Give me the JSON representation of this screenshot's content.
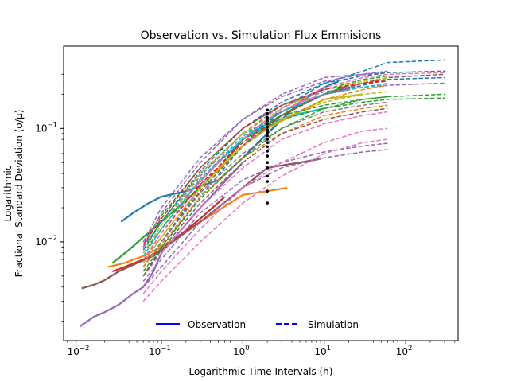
{
  "chart_data": {
    "type": "line",
    "title": "Observation vs. Simulation Flux Emmisions",
    "xlabel": "Logarithmic Time Intervals (h)",
    "ylabel_line1": "Logarithmic",
    "ylabel_line2": "Fractional Standard Deviation (σ/μ)",
    "xscale": "log",
    "yscale": "log",
    "xlim": [
      0.0063,
      440
    ],
    "ylim": [
      0.00135,
      0.53
    ],
    "x_ticks": [
      {
        "value": 0.01,
        "base": "10",
        "exp": "−2"
      },
      {
        "value": 0.1,
        "base": "10",
        "exp": "−1"
      },
      {
        "value": 1,
        "base": "10",
        "exp": "0"
      },
      {
        "value": 10,
        "base": "10",
        "exp": "1"
      },
      {
        "value": 100,
        "base": "10",
        "exp": "2"
      }
    ],
    "y_ticks": [
      {
        "value": 0.01,
        "base": "10",
        "exp": "−2"
      },
      {
        "value": 0.1,
        "base": "10",
        "exp": "−1"
      }
    ],
    "legend": {
      "placement": "lower center",
      "entries": [
        {
          "label": "Observation",
          "style": "solid",
          "color": "#0000ff"
        },
        {
          "label": "Simulation",
          "style": "dashed",
          "color": "#0000ff"
        }
      ]
    },
    "colors": [
      "#1f77b4",
      "#ff7f0e",
      "#2ca02c",
      "#d62728",
      "#9467bd",
      "#8c564b",
      "#e377c2",
      "#7f7f7f",
      "#bcbd22",
      "#17becf"
    ],
    "series": [
      {
        "style": "solid",
        "color": "#1f77b4",
        "x": [
          0.032,
          0.045,
          0.07,
          0.1,
          0.2,
          0.5,
          1.0,
          2.0,
          5.0,
          10,
          15
        ],
        "y": [
          0.015,
          0.018,
          0.022,
          0.025,
          0.028,
          0.035,
          0.055,
          0.09,
          0.17,
          0.23,
          0.26
        ]
      },
      {
        "style": "solid",
        "color": "#ff7f0e",
        "x": [
          0.022,
          0.035,
          0.06,
          0.1,
          0.3,
          0.7,
          1.0,
          2.0,
          3.5
        ],
        "y": [
          0.006,
          0.0065,
          0.0075,
          0.009,
          0.015,
          0.022,
          0.026,
          0.028,
          0.03
        ]
      },
      {
        "style": "solid",
        "color": "#2ca02c",
        "x": [
          0.025,
          0.04,
          0.06,
          0.1,
          0.3,
          0.6,
          1.0,
          2.0,
          5.0,
          10,
          20
        ],
        "y": [
          0.0065,
          0.0085,
          0.011,
          0.015,
          0.03,
          0.05,
          0.08,
          0.11,
          0.16,
          0.2,
          0.24
        ]
      },
      {
        "style": "solid",
        "color": "#d62728",
        "x": [
          0.025,
          0.035,
          0.06,
          0.1,
          0.3,
          0.6
        ],
        "y": [
          0.0055,
          0.006,
          0.007,
          0.0085,
          0.016,
          0.025
        ]
      },
      {
        "style": "solid",
        "color": "#9467bd",
        "x": [
          0.01,
          0.015,
          0.02,
          0.03,
          0.045,
          0.06,
          0.08,
          0.1,
          0.3,
          1.0
        ],
        "y": [
          0.0018,
          0.0022,
          0.0024,
          0.0028,
          0.0035,
          0.004,
          0.0055,
          0.008,
          0.02,
          0.05
        ]
      },
      {
        "style": "solid",
        "color": "#8c564b",
        "x": [
          0.0105,
          0.015,
          0.02,
          0.03,
          0.05,
          0.08,
          0.1,
          0.3,
          1.0,
          2.0,
          5.0,
          9.0
        ],
        "y": [
          0.0039,
          0.0042,
          0.0046,
          0.0055,
          0.0065,
          0.0075,
          0.0085,
          0.015,
          0.03,
          0.045,
          0.05,
          0.054
        ]
      },
      {
        "style": "solid",
        "color": "#e377c2",
        "x": [
          0.2,
          0.5,
          1.0,
          2.0,
          5.0,
          10,
          20
        ],
        "y": [
          0.025,
          0.05,
          0.08,
          0.12,
          0.17,
          0.2,
          0.22
        ]
      },
      {
        "style": "solid",
        "color": "#bcbd22",
        "x": [
          0.3,
          0.6,
          1.0,
          2.0,
          5.0,
          10,
          30
        ],
        "y": [
          0.03,
          0.05,
          0.07,
          0.1,
          0.14,
          0.18,
          0.2
        ]
      },
      {
        "style": "solid",
        "color": "#17becf",
        "x": [
          0.5,
          1.0,
          2.0,
          4.0,
          10
        ],
        "y": [
          0.05,
          0.08,
          0.11,
          0.13,
          0.15
        ]
      },
      {
        "style": "dashed",
        "color": "#1f77b4",
        "x": [
          0.06,
          0.1,
          0.3,
          1.0,
          3.0,
          10,
          30,
          60,
          300
        ],
        "y": [
          0.005,
          0.009,
          0.025,
          0.07,
          0.15,
          0.25,
          0.32,
          0.38,
          0.4
        ]
      },
      {
        "style": "dashed",
        "color": "#1f77b4",
        "x": [
          0.06,
          0.1,
          0.3,
          1.0,
          3.0,
          10,
          30,
          60,
          300
        ],
        "y": [
          0.006,
          0.01,
          0.03,
          0.08,
          0.14,
          0.2,
          0.24,
          0.27,
          0.28
        ]
      },
      {
        "style": "dashed",
        "color": "#ff7f0e",
        "x": [
          0.06,
          0.1,
          0.3,
          1.0,
          3.0,
          10,
          30,
          60
        ],
        "y": [
          0.007,
          0.011,
          0.03,
          0.07,
          0.12,
          0.18,
          0.22,
          0.24
        ]
      },
      {
        "style": "dashed",
        "color": "#2ca02c",
        "x": [
          0.06,
          0.1,
          0.3,
          1.0,
          3.0,
          10,
          30,
          60,
          300
        ],
        "y": [
          0.008,
          0.013,
          0.035,
          0.08,
          0.12,
          0.15,
          0.17,
          0.18,
          0.185
        ]
      },
      {
        "style": "dashed",
        "color": "#2ca02c",
        "x": [
          0.06,
          0.1,
          0.3,
          1.0,
          3.0,
          10,
          30,
          60,
          300
        ],
        "y": [
          0.009,
          0.015,
          0.04,
          0.09,
          0.13,
          0.16,
          0.18,
          0.19,
          0.2
        ]
      },
      {
        "style": "dashed",
        "color": "#2ca02c",
        "x": [
          0.06,
          0.1,
          0.3,
          1.0,
          3.0,
          10,
          30,
          60
        ],
        "y": [
          0.01,
          0.017,
          0.045,
          0.1,
          0.16,
          0.22,
          0.27,
          0.29
        ]
      },
      {
        "style": "dashed",
        "color": "#d62728",
        "x": [
          0.06,
          0.1,
          0.3,
          1.0,
          3.0,
          10,
          30,
          60
        ],
        "y": [
          0.007,
          0.012,
          0.032,
          0.075,
          0.13,
          0.2,
          0.25,
          0.27
        ]
      },
      {
        "style": "dashed",
        "color": "#9467bd",
        "x": [
          0.06,
          0.1,
          0.3,
          1.0,
          3.0,
          10,
          30,
          60
        ],
        "y": [
          0.009,
          0.018,
          0.05,
          0.12,
          0.19,
          0.26,
          0.3,
          0.32
        ]
      },
      {
        "style": "dashed",
        "color": "#9467bd",
        "x": [
          0.06,
          0.1,
          0.3,
          1.0,
          3.0,
          10,
          30,
          60,
          300
        ],
        "y": [
          0.008,
          0.014,
          0.038,
          0.09,
          0.16,
          0.21,
          0.23,
          0.24,
          0.25
        ]
      },
      {
        "style": "dashed",
        "color": "#9467bd",
        "x": [
          0.06,
          0.1,
          0.3,
          1.0,
          3.0,
          10,
          30,
          60
        ],
        "y": [
          0.004,
          0.006,
          0.015,
          0.03,
          0.045,
          0.055,
          0.062,
          0.065
        ]
      },
      {
        "style": "dashed",
        "color": "#9467bd",
        "x": [
          0.06,
          0.1,
          0.3,
          1.0,
          3.0,
          10,
          30,
          60
        ],
        "y": [
          0.0045,
          0.007,
          0.018,
          0.035,
          0.05,
          0.062,
          0.07,
          0.074
        ]
      },
      {
        "style": "dashed",
        "color": "#9467bd",
        "x": [
          0.06,
          0.1,
          0.3,
          1.0,
          3.0,
          10,
          30,
          60
        ],
        "y": [
          0.01,
          0.02,
          0.055,
          0.12,
          0.2,
          0.28,
          0.3,
          0.31
        ]
      },
      {
        "style": "dashed",
        "color": "#8c564b",
        "x": [
          0.06,
          0.1,
          0.3,
          1.0,
          3.0,
          10,
          30,
          60,
          300
        ],
        "y": [
          0.006,
          0.01,
          0.028,
          0.07,
          0.13,
          0.2,
          0.25,
          0.28,
          0.3
        ]
      },
      {
        "style": "dashed",
        "color": "#e377c2",
        "x": [
          0.06,
          0.1,
          0.3,
          1.0,
          3.0,
          10,
          30,
          60
        ],
        "y": [
          0.003,
          0.0045,
          0.01,
          0.022,
          0.038,
          0.06,
          0.075,
          0.08
        ]
      },
      {
        "style": "dashed",
        "color": "#e377c2",
        "x": [
          0.06,
          0.1,
          0.3,
          1.0,
          3.0,
          10,
          30,
          60
        ],
        "y": [
          0.0035,
          0.0055,
          0.013,
          0.03,
          0.05,
          0.075,
          0.095,
          0.1
        ]
      },
      {
        "style": "dashed",
        "color": "#e377c2",
        "x": [
          0.06,
          0.1,
          0.3,
          1.0,
          3.0,
          10,
          30,
          60
        ],
        "y": [
          0.005,
          0.008,
          0.02,
          0.045,
          0.08,
          0.11,
          0.13,
          0.14
        ]
      },
      {
        "style": "dashed",
        "color": "#e377c2",
        "x": [
          0.06,
          0.1,
          0.3,
          1.0,
          3.0,
          10,
          30,
          60,
          300
        ],
        "y": [
          0.007,
          0.012,
          0.035,
          0.08,
          0.15,
          0.23,
          0.28,
          0.3,
          0.31
        ]
      },
      {
        "style": "dashed",
        "color": "#7f7f7f",
        "x": [
          0.06,
          0.1,
          0.3,
          1.0,
          3.0,
          10,
          30,
          60
        ],
        "y": [
          0.006,
          0.01,
          0.027,
          0.06,
          0.1,
          0.14,
          0.16,
          0.17
        ]
      },
      {
        "style": "dashed",
        "color": "#bcbd22",
        "x": [
          0.06,
          0.1,
          0.3,
          1.0,
          3.0,
          10,
          30,
          60
        ],
        "y": [
          0.0065,
          0.011,
          0.03,
          0.07,
          0.12,
          0.17,
          0.2,
          0.21
        ]
      },
      {
        "style": "dashed",
        "color": "#bcbd22",
        "x": [
          0.06,
          0.1,
          0.3,
          1.0,
          3.0,
          10,
          30,
          60
        ],
        "y": [
          0.008,
          0.014,
          0.04,
          0.09,
          0.15,
          0.22,
          0.26,
          0.28
        ]
      },
      {
        "style": "dashed",
        "color": "#17becf",
        "x": [
          0.06,
          0.1,
          0.3,
          1.0,
          3.0,
          10,
          30,
          60
        ],
        "y": [
          0.0075,
          0.013,
          0.036,
          0.085,
          0.14,
          0.2,
          0.23,
          0.25
        ]
      },
      {
        "style": "dashed",
        "color": "#1f77b4",
        "x": [
          0.06,
          0.1,
          0.3,
          1.0,
          3.0,
          10,
          30,
          60,
          300
        ],
        "y": [
          0.0085,
          0.015,
          0.042,
          0.1,
          0.17,
          0.25,
          0.29,
          0.31,
          0.32
        ]
      },
      {
        "style": "dashed",
        "color": "#ff7f0e",
        "x": [
          0.06,
          0.1,
          0.3,
          1.0,
          3.0,
          10,
          30,
          60
        ],
        "y": [
          0.006,
          0.0095,
          0.025,
          0.055,
          0.09,
          0.13,
          0.15,
          0.16
        ]
      },
      {
        "style": "dashed",
        "color": "#2ca02c",
        "x": [
          0.06,
          0.1,
          0.3,
          1.0,
          3.0,
          10,
          30,
          60
        ],
        "y": [
          0.0055,
          0.009,
          0.024,
          0.055,
          0.1,
          0.15,
          0.18,
          0.19
        ]
      },
      {
        "style": "dashed",
        "color": "#d62728",
        "x": [
          0.06,
          0.1,
          0.3,
          1.0,
          3.0,
          10,
          30,
          60
        ],
        "y": [
          0.0095,
          0.016,
          0.045,
          0.1,
          0.16,
          0.22,
          0.25,
          0.26
        ]
      },
      {
        "style": "dashed",
        "color": "#8c564b",
        "x": [
          0.06,
          0.1,
          0.3,
          1.0,
          3.0,
          10,
          30,
          60
        ],
        "y": [
          0.005,
          0.0085,
          0.022,
          0.05,
          0.09,
          0.12,
          0.14,
          0.15
        ]
      }
    ],
    "points": {
      "color": "#000000",
      "x": [
        2.0,
        2.0,
        2.0,
        2.0,
        2.0,
        2.0,
        2.0,
        2.0,
        2.0,
        2.0,
        2.0,
        2.0,
        2.0,
        2.0,
        2.0,
        2.0,
        2.0,
        2.0,
        2.0,
        2.0
      ],
      "y": [
        0.022,
        0.028,
        0.034,
        0.038,
        0.045,
        0.05,
        0.057,
        0.063,
        0.069,
        0.075,
        0.08,
        0.086,
        0.092,
        0.097,
        0.103,
        0.11,
        0.117,
        0.125,
        0.135,
        0.145
      ]
    }
  }
}
